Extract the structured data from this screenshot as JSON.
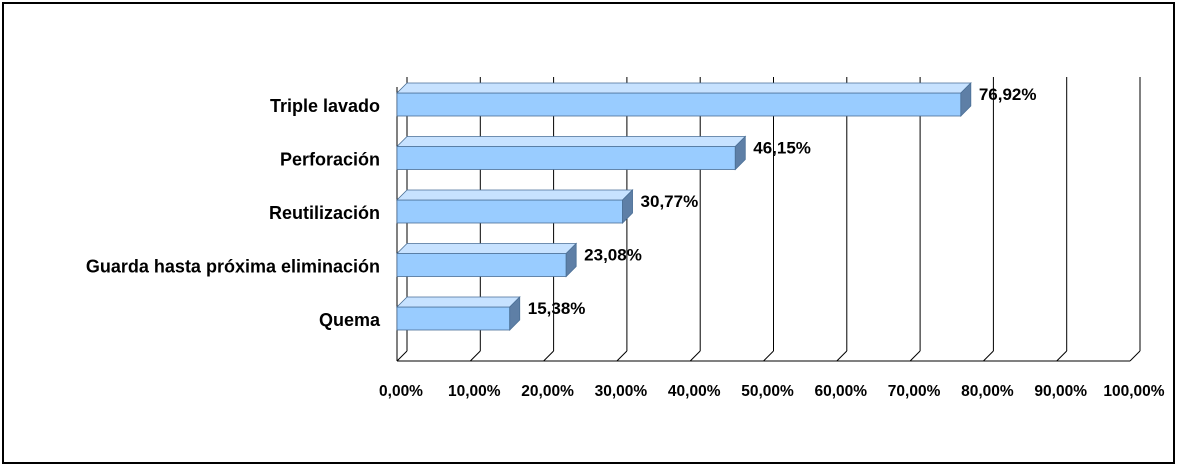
{
  "chart_data": {
    "type": "bar",
    "orientation": "horizontal",
    "style": "3d",
    "categories": [
      "Triple lavado",
      "Perforación",
      "Reutilización",
      "Guarda hasta próxima eliminación",
      "Quema"
    ],
    "values": [
      76.92,
      46.15,
      30.77,
      23.08,
      15.38
    ],
    "value_labels": [
      "76,92%",
      "46,15%",
      "30,77%",
      "23,08%",
      "15,38%"
    ],
    "xlim": [
      0,
      100
    ],
    "x_ticks": [
      0,
      10,
      20,
      30,
      40,
      50,
      60,
      70,
      80,
      90,
      100
    ],
    "x_tick_labels": [
      "0,00%",
      "10,00%",
      "20,00%",
      "30,00%",
      "40,00%",
      "50,00%",
      "60,00%",
      "70,00%",
      "80,00%",
      "90,00%",
      "100,00%"
    ],
    "title": "",
    "xlabel": "",
    "ylabel": "",
    "grid": true,
    "legend": "none",
    "colors": {
      "bar_front": "#99ccff",
      "bar_top": "#c7e2ff",
      "bar_side": "#5e7fa6",
      "bar_edge": "#4a6f96",
      "grid": "#000000"
    }
  }
}
